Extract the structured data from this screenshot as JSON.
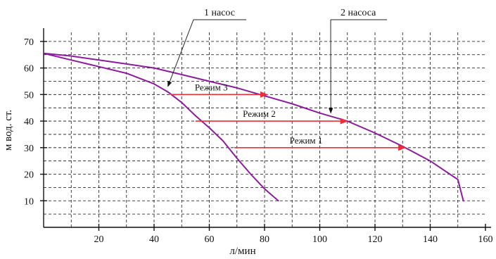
{
  "chart_data": {
    "type": "line",
    "xlabel": "л/мин",
    "ylabel": "м вод. ст.",
    "xlim": [
      0,
      160
    ],
    "ylim": [
      0,
      75
    ],
    "x_ticks": [
      20,
      40,
      60,
      80,
      100,
      120,
      140,
      160
    ],
    "y_ticks": [
      10,
      20,
      30,
      40,
      50,
      60,
      70
    ],
    "grid": true,
    "colors": {
      "curve": "#8b1d9c",
      "arrow": "#ee2d3a",
      "axis": "#111111"
    },
    "series": [
      {
        "name": "1 насос",
        "points": [
          [
            0,
            65.5
          ],
          [
            10,
            63
          ],
          [
            20,
            60.5
          ],
          [
            30,
            58
          ],
          [
            40,
            54
          ],
          [
            45,
            51
          ],
          [
            50,
            47
          ],
          [
            55,
            42
          ],
          [
            60,
            37.5
          ],
          [
            65,
            32.5
          ],
          [
            70,
            26
          ],
          [
            75,
            20
          ],
          [
            80,
            14.5
          ],
          [
            85,
            10
          ]
        ]
      },
      {
        "name": "2 насоса",
        "points": [
          [
            0,
            65.5
          ],
          [
            10,
            64.5
          ],
          [
            20,
            63
          ],
          [
            30,
            61.5
          ],
          [
            40,
            60
          ],
          [
            50,
            57.5
          ],
          [
            60,
            55
          ],
          [
            70,
            52.5
          ],
          [
            80,
            49.5
          ],
          [
            90,
            46.5
          ],
          [
            100,
            43
          ],
          [
            110,
            40
          ],
          [
            120,
            35.5
          ],
          [
            130,
            30.5
          ],
          [
            140,
            25
          ],
          [
            150,
            18
          ],
          [
            152,
            10
          ]
        ]
      }
    ],
    "modes": [
      {
        "label": "Режим 3",
        "y": 50,
        "x_start": 46,
        "x_end": 81
      },
      {
        "label": "Режим 2",
        "y": 40,
        "x_start": 55,
        "x_end": 110
      },
      {
        "label": "Режим 1",
        "y": 30,
        "x_start": 69,
        "x_end": 131
      }
    ]
  }
}
